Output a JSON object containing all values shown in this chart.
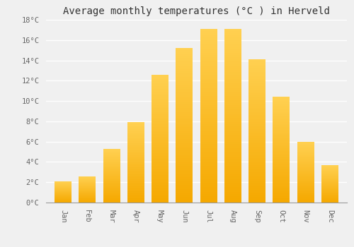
{
  "title": "Average monthly temperatures (°C ) in Herveld",
  "months": [
    "Jan",
    "Feb",
    "Mar",
    "Apr",
    "May",
    "Jun",
    "Jul",
    "Aug",
    "Sep",
    "Oct",
    "Nov",
    "Dec"
  ],
  "values": [
    2.1,
    2.6,
    5.3,
    7.9,
    12.6,
    15.2,
    17.1,
    17.1,
    14.1,
    10.4,
    6.0,
    3.7
  ],
  "bar_color_bottom": "#F5A800",
  "bar_color_top": "#FFD050",
  "ylim": [
    0,
    18
  ],
  "yticks": [
    0,
    2,
    4,
    6,
    8,
    10,
    12,
    14,
    16,
    18
  ],
  "ytick_labels": [
    "0°C",
    "2°C",
    "4°C",
    "6°C",
    "8°C",
    "10°C",
    "12°C",
    "14°C",
    "16°C",
    "18°C"
  ],
  "background_color": "#f0f0f0",
  "grid_color": "#ffffff",
  "title_fontsize": 10,
  "tick_fontsize": 7.5,
  "bar_width": 0.7,
  "tick_color": "#666666"
}
